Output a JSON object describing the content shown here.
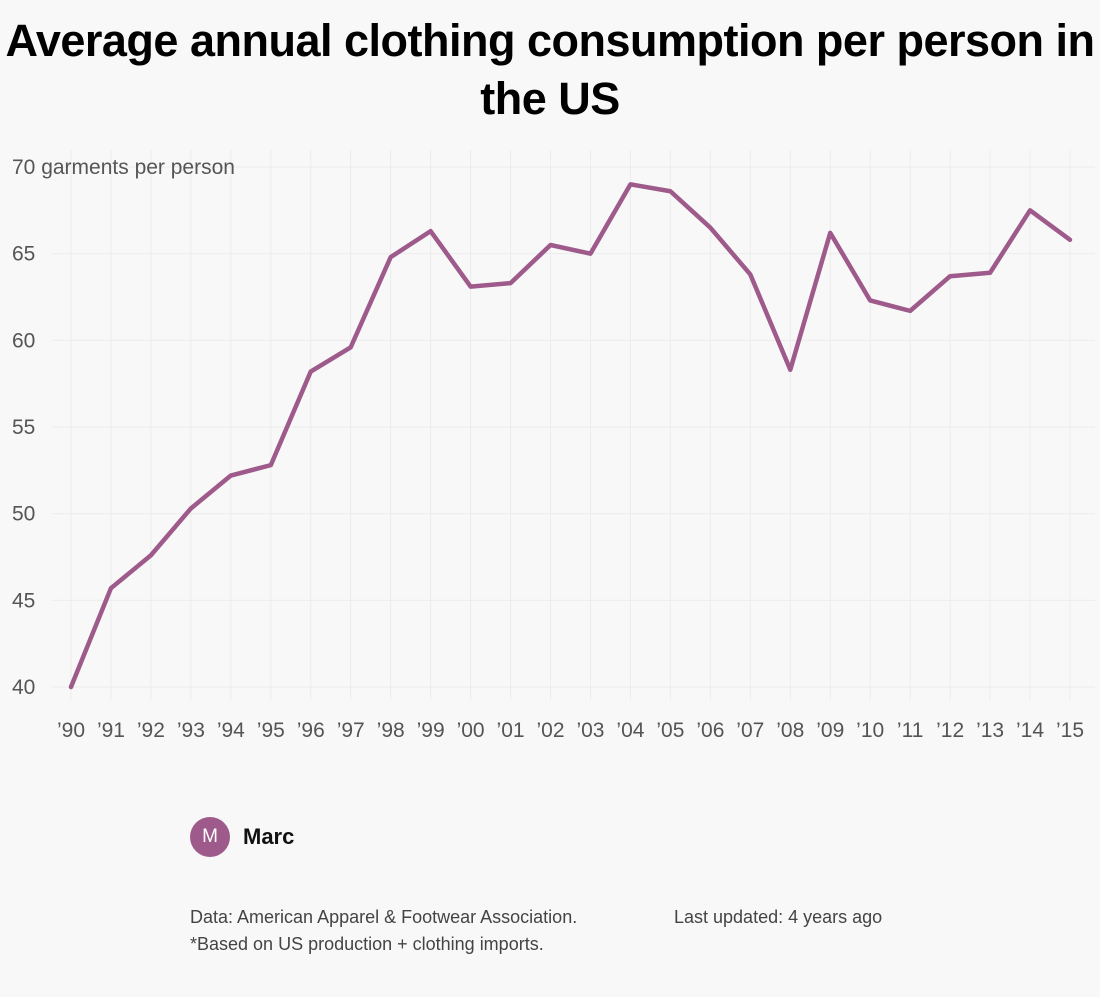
{
  "title": "Average annual clothing consumption per person in the US",
  "chart_data": {
    "type": "line",
    "title": "Average annual clothing consumption per person in the US",
    "ylabel": "garments per person",
    "top_tick_label": "70 garments per person",
    "ylim": [
      40,
      70
    ],
    "y_ticks": [
      40,
      45,
      50,
      55,
      60,
      65,
      70
    ],
    "grid": true,
    "categories": [
      "’90",
      "’91",
      "’92",
      "’93",
      "’94",
      "’95",
      "’96",
      "’97",
      "’98",
      "’99",
      "’00",
      "’01",
      "’02",
      "’03",
      "’04",
      "’05",
      "’06",
      "’07",
      "’08",
      "’09",
      "’10",
      "’11",
      "’12",
      "’13",
      "’14",
      "’15"
    ],
    "series": [
      {
        "name": "Garments per person",
        "color": "#9e5a8a",
        "values": [
          40.0,
          45.7,
          47.6,
          50.3,
          52.2,
          52.8,
          58.2,
          59.6,
          64.8,
          66.3,
          63.1,
          63.3,
          65.5,
          65.0,
          69.0,
          68.6,
          66.5,
          63.8,
          58.3,
          66.2,
          62.3,
          61.7,
          63.7,
          63.9,
          67.5,
          65.8
        ]
      }
    ]
  },
  "author": {
    "initial": "M",
    "name": "Marc",
    "avatar_color": "#9e5a8a"
  },
  "footer": {
    "source": "Data: American Apparel & Footwear Association. *Based on US production + clothing imports.",
    "updated": "Last updated: 4 years ago"
  }
}
